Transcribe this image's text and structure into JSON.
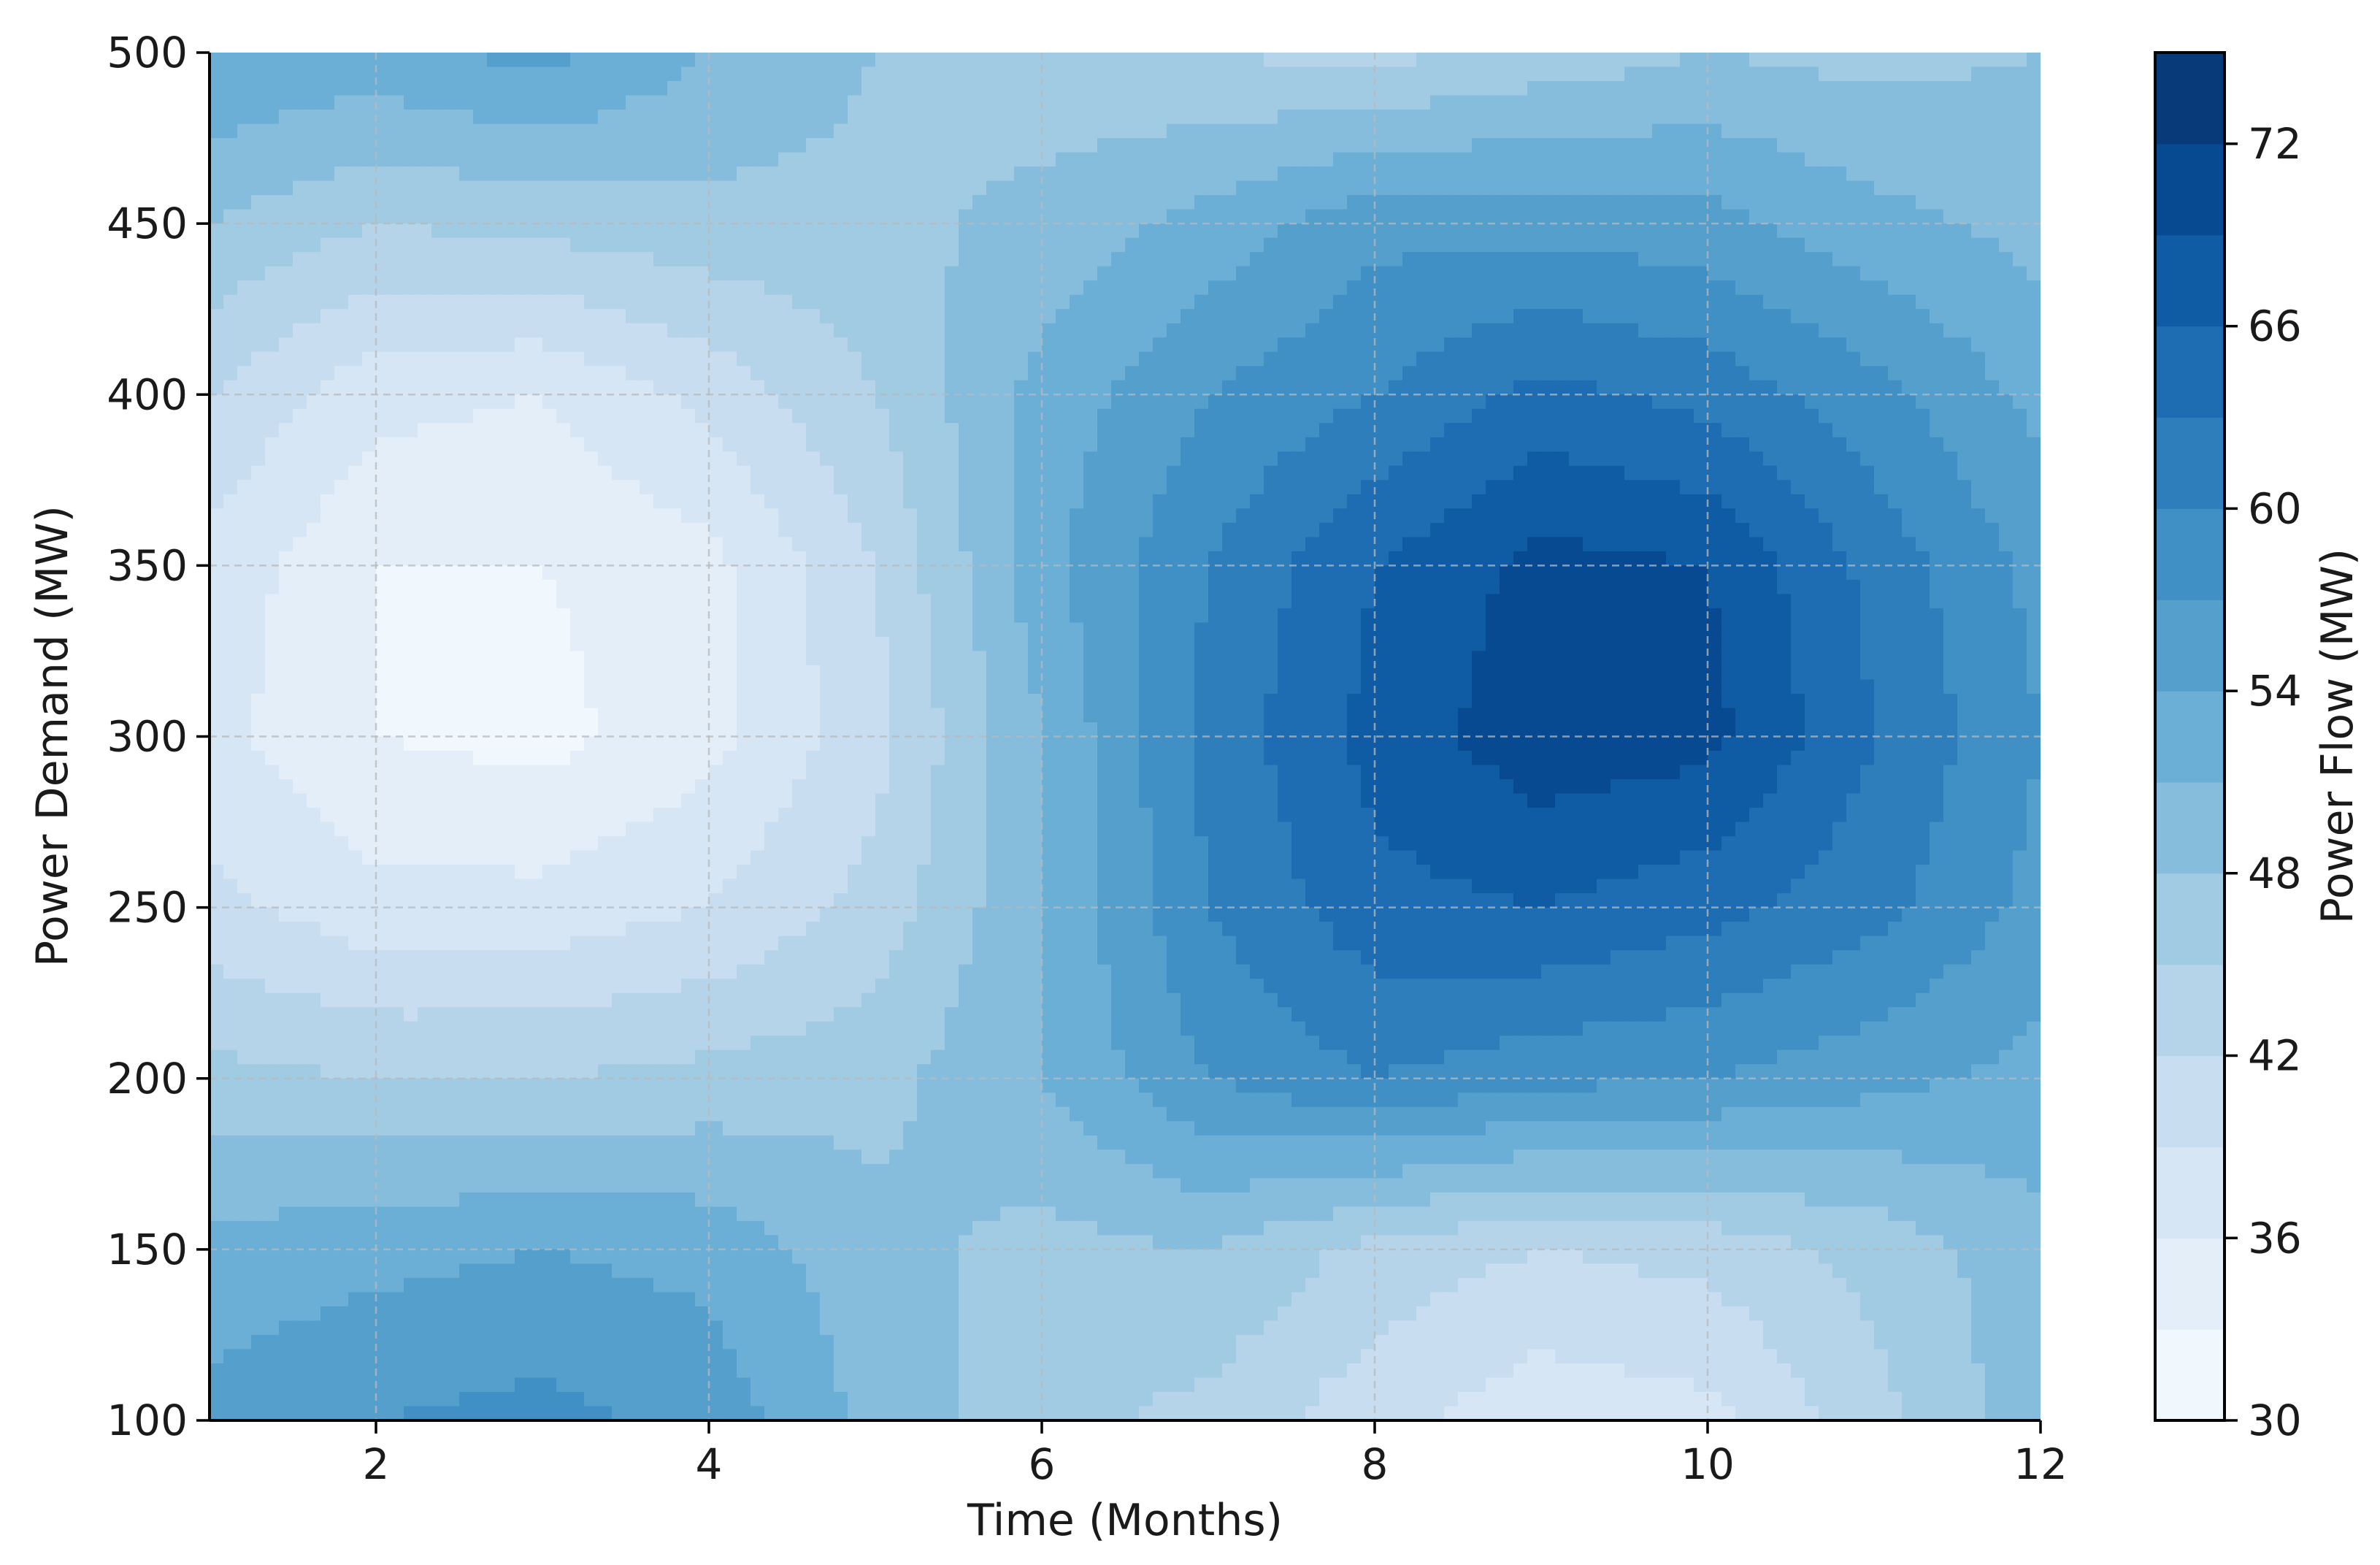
{
  "chart_data": {
    "type": "heatmap",
    "subtype": "filled-contour",
    "title": "",
    "xlabel": "Time (Months)",
    "ylabel": "Power Demand (MW)",
    "xlim": [
      1,
      12
    ],
    "ylim": [
      100,
      500
    ],
    "x_ticks": [
      2,
      4,
      6,
      8,
      10,
      12
    ],
    "y_ticks": [
      100,
      150,
      200,
      250,
      300,
      350,
      400,
      450,
      500
    ],
    "grid": true,
    "colorbar": {
      "label": "Power Flow (MW)",
      "range": [
        30,
        75
      ],
      "ticks": [
        30,
        36,
        42,
        48,
        54,
        60,
        66,
        72
      ],
      "levels": 15,
      "colormap": "Blues",
      "placement": "right"
    },
    "grid_x": [
      1,
      2,
      3,
      4,
      5,
      6,
      7,
      8,
      9,
      10,
      11,
      12
    ],
    "grid_y": [
      100,
      150,
      200,
      250,
      300,
      350,
      400,
      450,
      500
    ],
    "z": [
      [
        55,
        57,
        58,
        56,
        50,
        46,
        44,
        40,
        37,
        38,
        44,
        50
      ],
      [
        52,
        53,
        54,
        53,
        49,
        47,
        48,
        44,
        42,
        43,
        46,
        50
      ],
      [
        46,
        45,
        45,
        46,
        47,
        51,
        57,
        60,
        58,
        57,
        55,
        53
      ],
      [
        40,
        37,
        37,
        39,
        43,
        51,
        60,
        65,
        66,
        64,
        61,
        56
      ],
      [
        37,
        33,
        32,
        35,
        41,
        51,
        61,
        67,
        71,
        70,
        63,
        57
      ],
      [
        38,
        33,
        33,
        35,
        42,
        53,
        60,
        66,
        70,
        69,
        62,
        56
      ],
      [
        42,
        37,
        36,
        40,
        45,
        52,
        57,
        60,
        64,
        62,
        58,
        53
      ],
      [
        48,
        45,
        46,
        47,
        47,
        49,
        52,
        56,
        56,
        55,
        52,
        50
      ],
      [
        54,
        53,
        55,
        51,
        48,
        46,
        45,
        44,
        46,
        48,
        47,
        48
      ]
    ]
  }
}
